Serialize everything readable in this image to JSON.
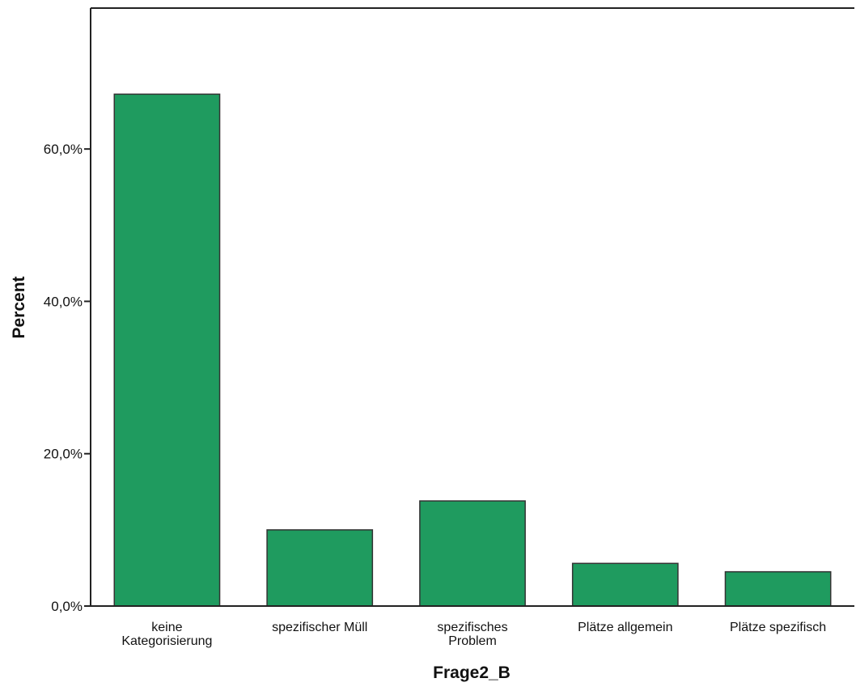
{
  "chart_data": {
    "type": "bar",
    "categories": [
      [
        "keine",
        "Kategorisierung"
      ],
      [
        "spezifischer Müll"
      ],
      [
        "spezifisches",
        "Problem"
      ],
      [
        "Plätze allgemein"
      ],
      [
        "Plätze spezifisch"
      ]
    ],
    "values": [
      67.2,
      10.0,
      13.8,
      5.6,
      4.5
    ],
    "xlabel": "Frage2_B",
    "ylabel": "Percent",
    "ylim": [
      0,
      78.5
    ],
    "yticks": [
      0,
      20,
      40,
      60
    ],
    "ytick_labels": [
      "0,0%",
      "20,0%",
      "40,0%",
      "60,0%"
    ],
    "grid": false,
    "bar_color": "#1f9b5f",
    "bar_edge_color": "#333333"
  }
}
